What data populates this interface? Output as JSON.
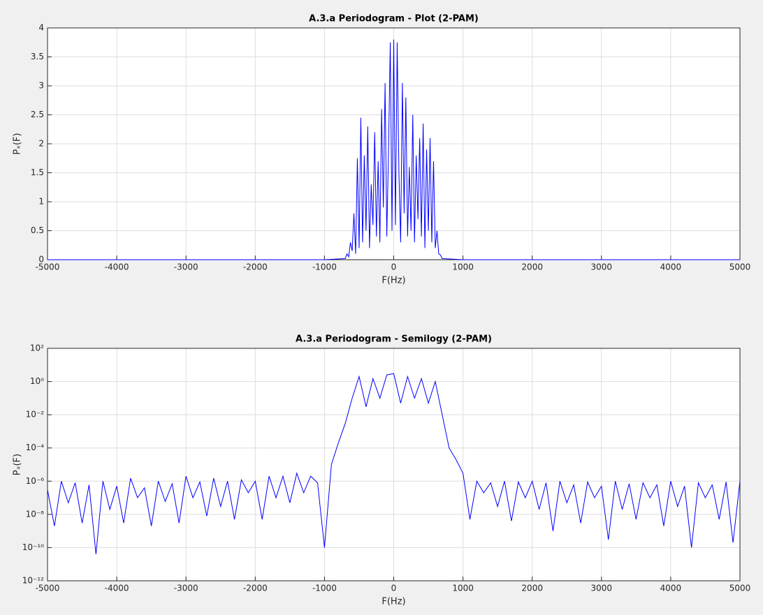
{
  "chart_data": [
    {
      "type": "line",
      "title": "A.3.a Periodogram - Plot (2-PAM)",
      "xlabel": "F(Hz)",
      "ylabel": "Pₓ(F)",
      "xlim": [
        -5000,
        5000
      ],
      "xticks": [
        -5000,
        -4000,
        -3000,
        -2000,
        -1000,
        0,
        1000,
        2000,
        3000,
        4000,
        5000
      ],
      "ylim": [
        0,
        4
      ],
      "yticks": [
        0,
        0.5,
        1,
        1.5,
        2,
        2.5,
        3,
        3.5,
        4
      ],
      "grid": true,
      "x": [
        -5000,
        -1000,
        -700,
        -675,
        -650,
        -625,
        -600,
        -575,
        -550,
        -525,
        -500,
        -475,
        -450,
        -425,
        -400,
        -375,
        -350,
        -325,
        -300,
        -275,
        -250,
        -225,
        -200,
        -175,
        -150,
        -125,
        -100,
        -75,
        -50,
        -25,
        0,
        25,
        50,
        75,
        100,
        125,
        150,
        175,
        200,
        225,
        250,
        275,
        300,
        325,
        350,
        375,
        400,
        425,
        450,
        475,
        500,
        525,
        550,
        575,
        600,
        625,
        650,
        675,
        700,
        1000,
        5000
      ],
      "series": [
        {
          "color": "#0000ff",
          "values": [
            0,
            0,
            0.02,
            0.1,
            0.05,
            0.3,
            0.15,
            0.8,
            0.1,
            1.75,
            0.2,
            2.45,
            0.3,
            1.8,
            0.5,
            2.3,
            0.2,
            1.3,
            0.6,
            2.2,
            0.4,
            1.7,
            0.3,
            2.6,
            0.9,
            3.05,
            0.4,
            1.9,
            3.75,
            0.5,
            3.8,
            0.6,
            3.75,
            1.5,
            0.3,
            3.05,
            0.8,
            2.8,
            0.4,
            1.6,
            0.5,
            2.5,
            0.3,
            1.8,
            0.7,
            2.1,
            0.4,
            2.35,
            0.2,
            1.9,
            0.5,
            2.1,
            0.3,
            1.7,
            0.2,
            0.5,
            0.1,
            0.08,
            0.02,
            0,
            0
          ]
        }
      ]
    },
    {
      "type": "line",
      "title": "A.3.a Periodogram - Semilogy (2-PAM)",
      "xlabel": "F(Hz)",
      "ylabel": "Pₓ(F)",
      "xlim": [
        -5000,
        5000
      ],
      "xticks": [
        -5000,
        -4000,
        -3000,
        -2000,
        -1000,
        0,
        1000,
        2000,
        3000,
        4000,
        5000
      ],
      "ylim": [
        1e-12,
        100
      ],
      "yscale": "log",
      "grid": true,
      "yticks": [
        {
          "value": 1e-12,
          "label": "10⁻¹²"
        },
        {
          "value": 1e-10,
          "label": "10⁻¹⁰"
        },
        {
          "value": 1e-08,
          "label": "10⁻⁸"
        },
        {
          "value": 1e-06,
          "label": "10⁻⁶"
        },
        {
          "value": 0.0001,
          "label": "10⁻⁴"
        },
        {
          "value": 0.01,
          "label": "10⁻²"
        },
        {
          "value": 1,
          "label": "10⁰"
        },
        {
          "value": 100,
          "label": "10²"
        }
      ],
      "x": [
        -5000,
        -4900,
        -4800,
        -4700,
        -4600,
        -4500,
        -4400,
        -4300,
        -4200,
        -4100,
        -4000,
        -3900,
        -3800,
        -3700,
        -3600,
        -3500,
        -3400,
        -3300,
        -3200,
        -3100,
        -3000,
        -2900,
        -2800,
        -2700,
        -2600,
        -2500,
        -2400,
        -2300,
        -2200,
        -2100,
        -2000,
        -1900,
        -1800,
        -1700,
        -1600,
        -1500,
        -1400,
        -1300,
        -1200,
        -1100,
        -1000,
        -900,
        -800,
        -700,
        -600,
        -500,
        -400,
        -300,
        -200,
        -100,
        0,
        100,
        200,
        300,
        400,
        500,
        600,
        700,
        800,
        900,
        1000,
        1100,
        1200,
        1300,
        1400,
        1500,
        1600,
        1700,
        1800,
        1900,
        2000,
        2100,
        2200,
        2300,
        2400,
        2500,
        2600,
        2700,
        2800,
        2900,
        3000,
        3100,
        3200,
        3300,
        3400,
        3500,
        3600,
        3700,
        3800,
        3900,
        4000,
        4100,
        4200,
        4300,
        4400,
        4500,
        4600,
        4700,
        4800,
        4900,
        5000
      ],
      "series": [
        {
          "color": "#0000ff",
          "values": [
            3e-07,
            2e-09,
            1e-06,
            5e-08,
            8e-07,
            3e-09,
            6e-07,
            4e-11,
            1e-06,
            2e-08,
            5e-07,
            3e-09,
            1.5e-06,
            1e-07,
            4e-07,
            2e-09,
            1e-06,
            6e-08,
            7e-07,
            3e-09,
            2e-06,
            1e-07,
            9e-07,
            8e-09,
            1.5e-06,
            3e-08,
            1e-06,
            5e-09,
            1.2e-06,
            2e-07,
            1e-06,
            5e-09,
            2e-06,
            1e-07,
            2e-06,
            5e-08,
            3e-06,
            2e-07,
            2e-06,
            8e-07,
            1e-10,
            1e-05,
            0.0002,
            0.003,
            0.1,
            2,
            0.03,
            1.5,
            0.1,
            2.5,
            3,
            0.05,
            2,
            0.1,
            1.5,
            0.05,
            1,
            0.01,
            0.0001,
            2e-05,
            3e-06,
            5e-09,
            1e-06,
            2e-07,
            8e-07,
            3e-08,
            1e-06,
            4e-09,
            9e-07,
            1e-07,
            1e-06,
            2e-08,
            8e-07,
            1e-09,
            1e-06,
            5e-08,
            6e-07,
            3e-09,
            9e-07,
            1e-07,
            5e-07,
            3e-10,
            1e-06,
            2e-08,
            7e-07,
            5e-09,
            8e-07,
            1e-07,
            6e-07,
            2e-09,
            1e-06,
            3e-08,
            5e-07,
            1e-10,
            8e-07,
            1e-07,
            6e-07,
            5e-09,
            9e-07,
            2e-10,
            1e-06
          ]
        }
      ]
    }
  ]
}
